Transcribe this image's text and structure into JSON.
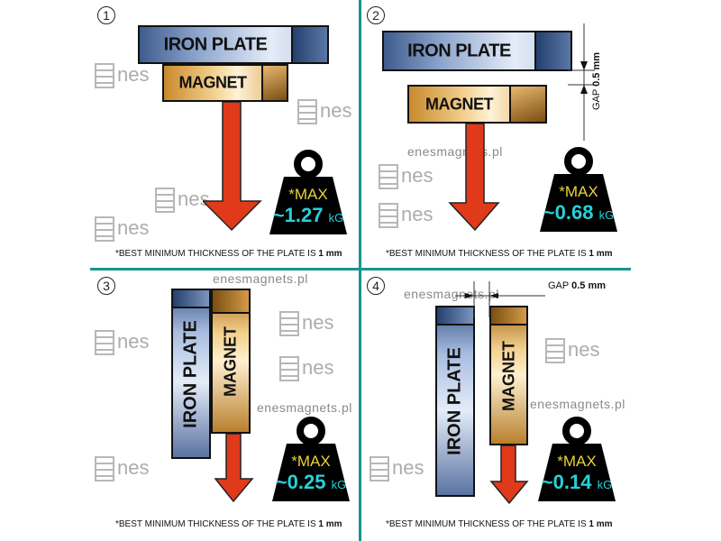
{
  "colors": {
    "divider": "#16948f",
    "max_text": "#e8d23a",
    "value_text": "#2ad0d8",
    "arrow": "#e03a1a"
  },
  "watermark": {
    "url": "enesmagnets.pl",
    "logo": "Enes",
    "logo_tail": "nes"
  },
  "panels": [
    {
      "number": "1",
      "iron_label": "IRON PLATE",
      "magnet_label": "MAGNET",
      "max_label": "*MAX",
      "value": "~1.27",
      "unit": "kG",
      "footnote": "*BEST MINIMUM THICKNESS OF THE PLATE IS",
      "footnote_value": "1 mm"
    },
    {
      "number": "2",
      "iron_label": "IRON PLATE",
      "magnet_label": "MAGNET",
      "gap_label": "GAP",
      "gap_value": "0.5 mm",
      "max_label": "*MAX",
      "value": "~0.68",
      "unit": "kG",
      "footnote": "*BEST MINIMUM THICKNESS OF THE PLATE IS",
      "footnote_value": "1 mm"
    },
    {
      "number": "3",
      "iron_label": "IRON  PLATE",
      "magnet_label": "MAGNET",
      "max_label": "*MAX",
      "value": "~0.25",
      "unit": "kG",
      "footnote": "*BEST MINIMUM THICKNESS OF THE PLATE IS",
      "footnote_value": "1 mm"
    },
    {
      "number": "4",
      "iron_label": "IRON PLATE",
      "magnet_label": "MAGNET",
      "gap_label": "GAP",
      "gap_value": "0.5 mm",
      "max_label": "*MAX",
      "value": "~0.14",
      "unit": "kG",
      "footnote": "*BEST MINIMUM THICKNESS OF THE PLATE IS",
      "footnote_value": "1 mm"
    }
  ]
}
